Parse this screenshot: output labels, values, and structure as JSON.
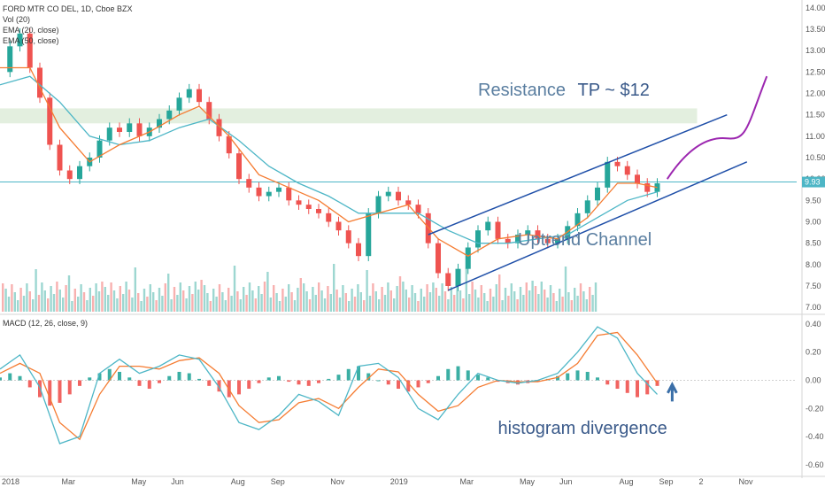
{
  "header": {
    "symbol_line": "FORD MTR CO DEL, 1D, Cboe BZX",
    "vol_label": "Vol (20)",
    "ema20_label": "EMA (20, close)",
    "ema50_label": "EMA (50, close)",
    "macd_label": "MACD (12, 26, close, 9)"
  },
  "annotations": {
    "resistance": "Resistance",
    "target": "TP ~ $12",
    "channel": "Uptrend Channel",
    "divergence": "histogram divergence"
  },
  "colors": {
    "up": "#26a69a",
    "down": "#ef5350",
    "ema20": "#f57c32",
    "ema50": "#4db6c6",
    "channel": "#1f4fa8",
    "projection": "#9c27b0",
    "resistance_zone": "#e3efdf",
    "current_price": "#4db6c6",
    "arrow": "#3b6fa8"
  },
  "chart_data": [
    {
      "type": "line",
      "title": "FORD MTR CO DEL, 1D, Cboe BZX",
      "price_axis": {
        "ticks": [
          "14.00",
          "13.50",
          "13.00",
          "12.50",
          "12.00",
          "11.50",
          "11.00",
          "10.50",
          "10.00",
          "9.50",
          "9.00",
          "8.50",
          "8.00",
          "7.50",
          "7.00"
        ],
        "ylim": [
          6.9,
          14.1
        ],
        "current_price": "9.93"
      },
      "time_axis": {
        "labels": [
          "2018",
          "Mar",
          "May",
          "Jun",
          "Aug",
          "Sep",
          "Nov",
          "2019",
          "Mar",
          "May",
          "Jun",
          "Aug",
          "Sep",
          "2",
          "Nov"
        ]
      },
      "close_path": [
        [
          0,
          12.5
        ],
        [
          1,
          13.1
        ],
        [
          2,
          13.4
        ],
        [
          3,
          12.6
        ],
        [
          4,
          11.9
        ],
        [
          5,
          10.8
        ],
        [
          6,
          10.2
        ],
        [
          7,
          10.0
        ],
        [
          8,
          10.3
        ],
        [
          9,
          10.5
        ],
        [
          10,
          10.9
        ],
        [
          11,
          11.2
        ],
        [
          12,
          11.1
        ],
        [
          13,
          11.3
        ],
        [
          14,
          11.0
        ],
        [
          15,
          11.2
        ],
        [
          16,
          11.4
        ],
        [
          17,
          11.6
        ],
        [
          18,
          11.9
        ],
        [
          19,
          12.1
        ],
        [
          20,
          11.8
        ],
        [
          21,
          11.4
        ],
        [
          22,
          11.0
        ],
        [
          23,
          10.6
        ],
        [
          24,
          10.0
        ],
        [
          25,
          9.8
        ],
        [
          26,
          9.6
        ],
        [
          27,
          9.7
        ],
        [
          28,
          9.8
        ],
        [
          29,
          9.5
        ],
        [
          30,
          9.4
        ],
        [
          31,
          9.3
        ],
        [
          32,
          9.2
        ],
        [
          33,
          9.0
        ],
        [
          34,
          8.8
        ],
        [
          35,
          8.5
        ],
        [
          36,
          8.2
        ],
        [
          37,
          9.2
        ],
        [
          38,
          9.6
        ],
        [
          39,
          9.7
        ],
        [
          40,
          9.5
        ],
        [
          41,
          9.4
        ],
        [
          42,
          9.2
        ],
        [
          43,
          8.5
        ],
        [
          44,
          7.8
        ],
        [
          45,
          7.5
        ],
        [
          46,
          7.9
        ],
        [
          47,
          8.4
        ],
        [
          48,
          8.8
        ],
        [
          49,
          9.0
        ],
        [
          50,
          8.6
        ],
        [
          51,
          8.5
        ],
        [
          52,
          8.7
        ],
        [
          53,
          8.8
        ],
        [
          54,
          8.6
        ],
        [
          55,
          8.5
        ],
        [
          56,
          8.6
        ],
        [
          57,
          8.9
        ],
        [
          58,
          9.2
        ],
        [
          59,
          9.5
        ],
        [
          60,
          9.8
        ],
        [
          61,
          10.4
        ],
        [
          62,
          10.3
        ],
        [
          63,
          10.1
        ],
        [
          64,
          9.9
        ],
        [
          65,
          9.7
        ],
        [
          66,
          9.9
        ]
      ],
      "ema20_path": [
        [
          0,
          12.6
        ],
        [
          3,
          12.6
        ],
        [
          6,
          11.2
        ],
        [
          9,
          10.4
        ],
        [
          12,
          10.8
        ],
        [
          15,
          11.1
        ],
        [
          18,
          11.5
        ],
        [
          20,
          11.7
        ],
        [
          23,
          11.0
        ],
        [
          26,
          10.1
        ],
        [
          29,
          9.8
        ],
        [
          32,
          9.5
        ],
        [
          35,
          9.0
        ],
        [
          38,
          9.2
        ],
        [
          41,
          9.4
        ],
        [
          44,
          8.6
        ],
        [
          47,
          8.2
        ],
        [
          50,
          8.6
        ],
        [
          53,
          8.7
        ],
        [
          56,
          8.6
        ],
        [
          59,
          9.1
        ],
        [
          62,
          9.9
        ],
        [
          64,
          9.9
        ],
        [
          66,
          9.8
        ]
      ],
      "ema50_path": [
        [
          0,
          12.2
        ],
        [
          3,
          12.4
        ],
        [
          6,
          11.8
        ],
        [
          9,
          11.0
        ],
        [
          12,
          10.8
        ],
        [
          15,
          10.9
        ],
        [
          18,
          11.2
        ],
        [
          21,
          11.4
        ],
        [
          24,
          10.9
        ],
        [
          27,
          10.3
        ],
        [
          30,
          9.9
        ],
        [
          33,
          9.6
        ],
        [
          36,
          9.2
        ],
        [
          39,
          9.2
        ],
        [
          42,
          9.2
        ],
        [
          45,
          8.8
        ],
        [
          48,
          8.5
        ],
        [
          51,
          8.5
        ],
        [
          54,
          8.6
        ],
        [
          57,
          8.7
        ],
        [
          60,
          9.1
        ],
        [
          63,
          9.5
        ],
        [
          66,
          9.7
        ]
      ],
      "resistance_zone": [
        11.3,
        11.65
      ],
      "channel_upper": [
        [
          43,
          8.7
        ],
        [
          73,
          11.5
        ]
      ],
      "channel_lower": [
        [
          45,
          7.4
        ],
        [
          75,
          10.4
        ]
      ],
      "projection": [
        [
          67,
          10.0
        ],
        [
          69,
          10.7
        ],
        [
          71,
          11.0
        ],
        [
          73,
          10.95
        ],
        [
          75,
          11.2
        ],
        [
          77,
          12.4
        ]
      ]
    },
    {
      "type": "bar",
      "title": "MACD (12, 26, close, 9)",
      "axis": {
        "ticks": [
          "0.40",
          "0.20",
          "0.00",
          "-0.20",
          "-0.40",
          "-0.60"
        ],
        "ylim": [
          -0.62,
          0.45
        ]
      },
      "histogram": [
        0.02,
        0.05,
        0.03,
        -0.05,
        -0.12,
        -0.18,
        -0.16,
        -0.1,
        -0.04,
        0.02,
        0.05,
        0.08,
        0.06,
        0.02,
        -0.04,
        -0.06,
        -0.02,
        0.03,
        0.06,
        0.05,
        0.01,
        -0.04,
        -0.08,
        -0.12,
        -0.1,
        -0.06,
        -0.02,
        0.02,
        0.03,
        -0.01,
        -0.03,
        -0.04,
        -0.02,
        0.01,
        0.04,
        0.08,
        0.1,
        0.05,
        0.0,
        -0.03,
        -0.06,
        -0.08,
        -0.05,
        -0.02,
        0.03,
        0.08,
        0.1,
        0.07,
        0.04,
        0.02,
        -0.01,
        -0.02,
        -0.03,
        -0.02,
        -0.01,
        0.01,
        0.03,
        0.05,
        0.07,
        0.06,
        0.02,
        -0.03,
        -0.06,
        -0.09,
        -0.12,
        -0.1,
        -0.04
      ],
      "macd_path": [
        [
          0,
          0.08
        ],
        [
          2,
          0.18
        ],
        [
          4,
          -0.05
        ],
        [
          6,
          -0.45
        ],
        [
          8,
          -0.4
        ],
        [
          10,
          0.05
        ],
        [
          12,
          0.15
        ],
        [
          14,
          0.05
        ],
        [
          16,
          0.1
        ],
        [
          18,
          0.18
        ],
        [
          20,
          0.15
        ],
        [
          22,
          -0.05
        ],
        [
          24,
          -0.3
        ],
        [
          26,
          -0.35
        ],
        [
          28,
          -0.25
        ],
        [
          30,
          -0.1
        ],
        [
          32,
          -0.15
        ],
        [
          34,
          -0.25
        ],
        [
          36,
          0.1
        ],
        [
          38,
          0.12
        ],
        [
          40,
          0.02
        ],
        [
          42,
          -0.2
        ],
        [
          44,
          -0.28
        ],
        [
          46,
          -0.1
        ],
        [
          48,
          0.05
        ],
        [
          50,
          0.0
        ],
        [
          52,
          -0.02
        ],
        [
          54,
          0.0
        ],
        [
          56,
          0.05
        ],
        [
          58,
          0.2
        ],
        [
          60,
          0.38
        ],
        [
          62,
          0.3
        ],
        [
          64,
          0.05
        ],
        [
          66,
          -0.1
        ]
      ],
      "signal_path": [
        [
          0,
          0.05
        ],
        [
          2,
          0.12
        ],
        [
          4,
          0.05
        ],
        [
          6,
          -0.3
        ],
        [
          8,
          -0.42
        ],
        [
          10,
          -0.1
        ],
        [
          12,
          0.1
        ],
        [
          14,
          0.1
        ],
        [
          16,
          0.08
        ],
        [
          18,
          0.14
        ],
        [
          20,
          0.16
        ],
        [
          22,
          0.05
        ],
        [
          24,
          -0.18
        ],
        [
          26,
          -0.3
        ],
        [
          28,
          -0.28
        ],
        [
          30,
          -0.16
        ],
        [
          32,
          -0.13
        ],
        [
          34,
          -0.2
        ],
        [
          36,
          -0.05
        ],
        [
          38,
          0.08
        ],
        [
          40,
          0.06
        ],
        [
          42,
          -0.1
        ],
        [
          44,
          -0.22
        ],
        [
          46,
          -0.18
        ],
        [
          48,
          -0.05
        ],
        [
          50,
          0.0
        ],
        [
          52,
          -0.01
        ],
        [
          54,
          -0.01
        ],
        [
          56,
          0.02
        ],
        [
          58,
          0.12
        ],
        [
          60,
          0.32
        ],
        [
          62,
          0.34
        ],
        [
          64,
          0.18
        ],
        [
          66,
          -0.02
        ]
      ]
    }
  ]
}
